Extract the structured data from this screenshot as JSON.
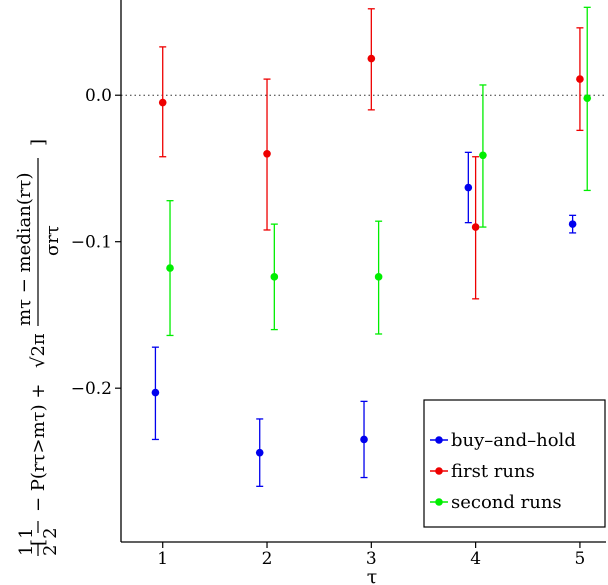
{
  "chart_data": {
    "type": "scatter",
    "subtype": "errorbar",
    "xlabel": "τ",
    "ylabel": {
      "lead": "1 1",
      "lead_den": "2 2",
      "p_term": "− P(rτ>mτ) + ",
      "sqrt_term": "√2π",
      "frac_num": "mτ − median(rτ)",
      "frac_den": "σrτ",
      "bracket_open": "[",
      "bracket_close": "]"
    },
    "x_ticks": [
      "1",
      "2",
      "3",
      "4",
      "5"
    ],
    "y_ticks": [
      "0.0",
      "−0.1",
      "−0.2"
    ],
    "y_tick_values": [
      0.0,
      -0.1,
      -0.2
    ],
    "xlim": [
      0.6,
      5.25
    ],
    "ylim": [
      -0.305,
      0.065
    ],
    "reference_line": {
      "y": 0.0,
      "style": "dotted"
    },
    "grid": false,
    "legend_position": "bottom-right",
    "series": [
      {
        "name": "buy–and–hold",
        "color": "#0000ee",
        "points": [
          {
            "x": 0.93,
            "y": -0.203,
            "lo": -0.235,
            "hi": -0.172
          },
          {
            "x": 1.93,
            "y": -0.244,
            "lo": -0.267,
            "hi": -0.221
          },
          {
            "x": 2.93,
            "y": -0.235,
            "lo": -0.261,
            "hi": -0.209
          },
          {
            "x": 3.93,
            "y": -0.063,
            "lo": -0.087,
            "hi": -0.039
          },
          {
            "x": 4.93,
            "y": -0.088,
            "lo": -0.094,
            "hi": -0.082
          }
        ]
      },
      {
        "name": "first runs",
        "color": "#ee0000",
        "points": [
          {
            "x": 1.0,
            "y": -0.005,
            "lo": -0.042,
            "hi": 0.033
          },
          {
            "x": 2.0,
            "y": -0.04,
            "lo": -0.092,
            "hi": 0.011
          },
          {
            "x": 3.0,
            "y": 0.025,
            "lo": -0.01,
            "hi": 0.059
          },
          {
            "x": 4.0,
            "y": -0.09,
            "lo": -0.139,
            "hi": -0.042
          },
          {
            "x": 5.0,
            "y": 0.011,
            "lo": -0.024,
            "hi": 0.046
          }
        ]
      },
      {
        "name": "second runs",
        "color": "#00ee00",
        "points": [
          {
            "x": 1.07,
            "y": -0.118,
            "lo": -0.164,
            "hi": -0.072
          },
          {
            "x": 2.07,
            "y": -0.124,
            "lo": -0.16,
            "hi": -0.088
          },
          {
            "x": 3.07,
            "y": -0.124,
            "lo": -0.163,
            "hi": -0.086
          },
          {
            "x": 4.07,
            "y": -0.041,
            "lo": -0.09,
            "hi": 0.007
          },
          {
            "x": 5.07,
            "y": -0.002,
            "lo": -0.065,
            "hi": 0.06
          }
        ]
      }
    ]
  }
}
